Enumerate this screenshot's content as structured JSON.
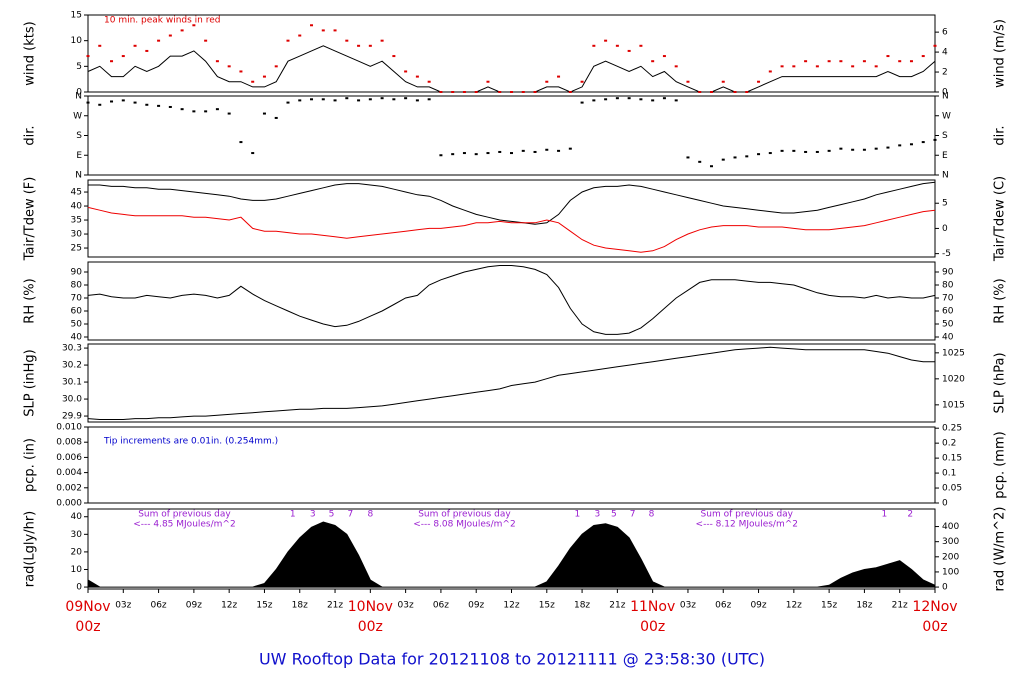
{
  "title": "UW Rooftop Data for 20121108  to  20121111 @ 23:58:30  (UTC)",
  "xlim": [
    0,
    72
  ],
  "x": [
    0,
    1,
    2,
    3,
    4,
    5,
    6,
    7,
    8,
    9,
    10,
    11,
    12,
    13,
    14,
    15,
    16,
    17,
    18,
    19,
    20,
    21,
    22,
    23,
    24,
    25,
    26,
    27,
    28,
    29,
    30,
    31,
    32,
    33,
    34,
    35,
    36,
    37,
    38,
    39,
    40,
    41,
    42,
    43,
    44,
    45,
    46,
    47,
    48,
    49,
    50,
    51,
    52,
    53,
    54,
    55,
    56,
    57,
    58,
    59,
    60,
    61,
    62,
    63,
    64,
    65,
    66,
    67,
    68,
    69,
    70,
    71,
    72
  ],
  "xticks": [
    {
      "value": 0,
      "label": "09Nov",
      "sublabel": "00z"
    },
    {
      "value": 3,
      "label": "03z"
    },
    {
      "value": 6,
      "label": "06z"
    },
    {
      "value": 9,
      "label": "09z"
    },
    {
      "value": 12,
      "label": "12z"
    },
    {
      "value": 15,
      "label": "15z"
    },
    {
      "value": 18,
      "label": "18z"
    },
    {
      "value": 21,
      "label": "21z"
    },
    {
      "value": 24,
      "label": "10Nov",
      "sublabel": "00z"
    },
    {
      "value": 27,
      "label": "03z"
    },
    {
      "value": 30,
      "label": "06z"
    },
    {
      "value": 33,
      "label": "09z"
    },
    {
      "value": 36,
      "label": "12z"
    },
    {
      "value": 39,
      "label": "15z"
    },
    {
      "value": 42,
      "label": "18z"
    },
    {
      "value": 45,
      "label": "21z"
    },
    {
      "value": 48,
      "label": "11Nov",
      "sublabel": "00z"
    },
    {
      "value": 51,
      "label": "03z"
    },
    {
      "value": 54,
      "label": "06z"
    },
    {
      "value": 57,
      "label": "09z"
    },
    {
      "value": 60,
      "label": "12z"
    },
    {
      "value": 63,
      "label": "15z"
    },
    {
      "value": 66,
      "label": "18z"
    },
    {
      "value": 69,
      "label": "21z"
    },
    {
      "value": 72,
      "label": "12Nov",
      "sublabel": "00z"
    }
  ],
  "chart_data": [
    {
      "type": "line",
      "ylabel": "wind (kts)",
      "y2label": "wind (m/s)",
      "annotation": "10 min. peak winds in red",
      "annotation_color": "#dd0000",
      "ylim": [
        0,
        15
      ],
      "yticks": [
        0,
        5,
        10,
        15
      ],
      "y2lim": [
        0,
        7.717
      ],
      "y2ticks": [
        0,
        2,
        4,
        6
      ],
      "series": [
        {
          "name": "wind",
          "style": "line",
          "color": "#000000",
          "values": [
            4,
            5,
            3,
            3,
            5,
            4,
            5,
            7,
            7,
            8,
            6,
            3,
            2,
            2,
            1,
            1,
            2,
            6,
            7,
            8,
            9,
            8,
            7,
            6,
            5,
            6,
            4,
            2,
            1,
            1,
            0,
            0,
            0,
            0,
            1,
            0,
            0,
            0,
            0,
            1,
            1,
            0,
            1,
            5,
            6,
            5,
            4,
            5,
            3,
            4,
            2,
            1,
            0,
            0,
            1,
            0,
            0,
            1,
            2,
            3,
            3,
            3,
            3,
            3,
            3,
            3,
            3,
            3,
            4,
            3,
            3,
            4,
            6
          ]
        },
        {
          "name": "peak",
          "style": "points",
          "color": "#dd0000",
          "values": [
            7,
            9,
            6,
            7,
            9,
            8,
            10,
            11,
            12,
            13,
            10,
            6,
            5,
            4,
            2,
            3,
            5,
            10,
            11,
            13,
            12,
            12,
            10,
            9,
            9,
            10,
            7,
            4,
            3,
            2,
            0,
            0,
            0,
            0,
            2,
            0,
            0,
            0,
            0,
            2,
            3,
            0,
            2,
            9,
            10,
            9,
            8,
            9,
            6,
            7,
            5,
            2,
            0,
            0,
            2,
            0,
            0,
            2,
            4,
            5,
            5,
            6,
            5,
            6,
            6,
            5,
            6,
            5,
            7,
            6,
            6,
            7,
            9
          ]
        }
      ]
    },
    {
      "type": "scatter",
      "ylabel": "dir.",
      "y2label": "dir.",
      "ylim": [
        0,
        360
      ],
      "yticks": [
        {
          "value": 0,
          "label": "N"
        },
        {
          "value": 90,
          "label": "E"
        },
        {
          "value": 180,
          "label": "S"
        },
        {
          "value": 270,
          "label": "W"
        },
        {
          "value": 360,
          "label": "N"
        }
      ],
      "y2lim": [
        0,
        360
      ],
      "y2ticks": [
        {
          "value": 0,
          "label": "N"
        },
        {
          "value": 90,
          "label": "E"
        },
        {
          "value": 180,
          "label": "S"
        },
        {
          "value": 270,
          "label": "W"
        },
        {
          "value": 360,
          "label": "N"
        }
      ],
      "series": [
        {
          "name": "dir",
          "style": "points",
          "color": "#000000",
          "values": [
            330,
            320,
            335,
            340,
            330,
            320,
            315,
            310,
            300,
            290,
            290,
            300,
            280,
            150,
            100,
            280,
            260,
            330,
            340,
            345,
            345,
            340,
            350,
            340,
            345,
            350,
            345,
            350,
            340,
            345,
            90,
            95,
            100,
            95,
            100,
            105,
            100,
            110,
            105,
            115,
            110,
            120,
            330,
            340,
            345,
            350,
            350,
            345,
            340,
            350,
            340,
            80,
            60,
            40,
            70,
            80,
            85,
            95,
            100,
            110,
            110,
            105,
            105,
            110,
            120,
            115,
            115,
            120,
            125,
            135,
            140,
            150,
            160
          ]
        }
      ]
    },
    {
      "type": "line",
      "ylabel": "Tair/Tdew (F)",
      "y2label": "Tair/Tdew (C)",
      "ylim": [
        21.8,
        49.3
      ],
      "yticks": [
        25,
        30,
        35,
        40,
        45
      ],
      "y2lim": [
        -5.67,
        9.61
      ],
      "y2ticks": [
        -5,
        0,
        5
      ],
      "series": [
        {
          "name": "Tair",
          "style": "line",
          "color": "#000000",
          "values": [
            47.5,
            47.5,
            47,
            47,
            46.5,
            46.5,
            46,
            46,
            45.5,
            45,
            44.5,
            44,
            43.5,
            42.5,
            42,
            42,
            42.5,
            43.5,
            44.5,
            45.5,
            46.5,
            47.5,
            48,
            48,
            47.5,
            47,
            46,
            45,
            44,
            43.5,
            42,
            40,
            38.5,
            37,
            36,
            35,
            34.5,
            34,
            33.5,
            34,
            37,
            42,
            45,
            46.5,
            47,
            47,
            47.5,
            47,
            46,
            45,
            44,
            43,
            42,
            41,
            40,
            39.5,
            39,
            38.5,
            38,
            37.5,
            37.5,
            38,
            38.5,
            39.5,
            40.5,
            41.5,
            42.5,
            44,
            45,
            46,
            47,
            48,
            48.5
          ]
        },
        {
          "name": "Tdew",
          "style": "line",
          "color": "#ee0000",
          "values": [
            39.5,
            38.5,
            37.5,
            37,
            36.5,
            36.5,
            36.5,
            36.5,
            36.5,
            36,
            36,
            35.5,
            35,
            36,
            32,
            31,
            31,
            30.5,
            30,
            30,
            29.5,
            29,
            28.5,
            29,
            29.5,
            30,
            30.5,
            31,
            31.5,
            32,
            32,
            32.5,
            33,
            34,
            34,
            34.5,
            34,
            34,
            34,
            35,
            34,
            31,
            28,
            26,
            25,
            24.5,
            24,
            23.5,
            24,
            25.5,
            28,
            30,
            31.5,
            32.5,
            33,
            33,
            33,
            32.5,
            32.5,
            32.5,
            32,
            31.5,
            31.5,
            31.5,
            32,
            32.5,
            33,
            34,
            35,
            36,
            37,
            38,
            38.5
          ]
        }
      ]
    },
    {
      "type": "line",
      "ylabel": "RH (%)",
      "y2label": "RH (%)",
      "ylim": [
        37.7,
        97.7
      ],
      "yticks": [
        40,
        50,
        60,
        70,
        80,
        90
      ],
      "y2lim": [
        37.7,
        97.7
      ],
      "y2ticks": [
        40,
        50,
        60,
        70,
        80,
        90
      ],
      "series": [
        {
          "name": "RH",
          "style": "line",
          "color": "#000000",
          "values": [
            72,
            73,
            71,
            70,
            70,
            72,
            71,
            70,
            72,
            73,
            72,
            70,
            72,
            79,
            73,
            68,
            64,
            60,
            56,
            53,
            50,
            48,
            49,
            52,
            56,
            60,
            65,
            70,
            72,
            80,
            84,
            87,
            90,
            92,
            94,
            95,
            95,
            94,
            92,
            88,
            78,
            62,
            50,
            44,
            42,
            42,
            43,
            47,
            54,
            62,
            70,
            76,
            82,
            84,
            84,
            84,
            83,
            82,
            82,
            81,
            80,
            77,
            74,
            72,
            71,
            71,
            70,
            72,
            70,
            71,
            70,
            70,
            72
          ]
        }
      ]
    },
    {
      "type": "line",
      "ylabel": "SLP (inHg)",
      "y2label": "SLP (hPa)",
      "ylim": [
        29.865,
        30.324
      ],
      "yticks": [
        {
          "value": 29.9,
          "label": "29.9"
        },
        {
          "value": 30,
          "label": "30.0"
        },
        30.1,
        30.2,
        30.3
      ],
      "y2lim": [
        1011.7,
        1026.7
      ],
      "y2ticks": [
        1015,
        1020,
        1025
      ],
      "series": [
        {
          "name": "SLP",
          "style": "line",
          "color": "#000000",
          "values": [
            29.885,
            29.88,
            29.88,
            29.88,
            29.885,
            29.885,
            29.89,
            29.89,
            29.895,
            29.9,
            29.9,
            29.905,
            29.91,
            29.915,
            29.92,
            29.925,
            29.93,
            29.935,
            29.94,
            29.94,
            29.945,
            29.945,
            29.945,
            29.95,
            29.955,
            29.96,
            29.97,
            29.98,
            29.99,
            30.0,
            30.01,
            30.02,
            30.03,
            30.04,
            30.05,
            30.06,
            30.08,
            30.09,
            30.1,
            30.12,
            30.14,
            30.15,
            30.16,
            30.17,
            30.18,
            30.19,
            30.2,
            30.21,
            30.22,
            30.23,
            30.24,
            30.25,
            30.26,
            30.27,
            30.28,
            30.29,
            30.295,
            30.3,
            30.305,
            30.3,
            30.295,
            30.29,
            30.29,
            30.29,
            30.29,
            30.29,
            30.29,
            30.28,
            30.27,
            30.25,
            30.23,
            30.22,
            30.22
          ]
        }
      ]
    },
    {
      "type": "line",
      "ylabel": "pcp. (in)",
      "y2label": "pcp. (mm)",
      "annotation": "Tip increments are 0.01in. (0.254mm.)",
      "annotation_color": "#0000cc",
      "ylim": [
        0,
        0.01
      ],
      "yticks": [
        {
          "value": 0,
          "label": "0.000"
        },
        {
          "value": 0.002,
          "label": "0.002"
        },
        {
          "value": 0.004,
          "label": "0.004"
        },
        {
          "value": 0.006,
          "label": "0.006"
        },
        {
          "value": 0.008,
          "label": "0.008"
        },
        {
          "value": 0.01,
          "label": "0.010"
        }
      ],
      "y2lim": [
        0,
        0.254
      ],
      "y2ticks": [
        0,
        0.05,
        0.1,
        0.15,
        0.2,
        0.25
      ],
      "series": []
    },
    {
      "type": "area",
      "ylabel": "rad(Lgly/hr)",
      "y2label": "rad (W/m^2)",
      "ylim": [
        -1.1,
        44.4
      ],
      "yticks": [
        0,
        10,
        20,
        30,
        40
      ],
      "y2lim": [
        -12.8,
        516
      ],
      "y2ticks": [
        0,
        100,
        200,
        300,
        400
      ],
      "notes": [
        {
          "x": 8.2,
          "lines": [
            "Sum of previous day",
            "<--- 4.85 MJoules/m^2"
          ]
        },
        {
          "x": 32,
          "lines": [
            "Sum of previous day",
            "<--- 8.08 MJoules/m^2"
          ]
        },
        {
          "x": 56,
          "lines": [
            "Sum of previous day",
            "<--- 8.12 MJoules/m^2"
          ]
        }
      ],
      "hour_marks": [
        {
          "x": 17.4,
          "text": "1"
        },
        {
          "x": 19.1,
          "text": "3"
        },
        {
          "x": 20.7,
          "text": "5"
        },
        {
          "x": 22.3,
          "text": "7"
        },
        {
          "x": 24.0,
          "text": "8"
        },
        {
          "x": 41.6,
          "text": "1"
        },
        {
          "x": 43.3,
          "text": "3"
        },
        {
          "x": 44.7,
          "text": "5"
        },
        {
          "x": 46.3,
          "text": "7"
        },
        {
          "x": 47.9,
          "text": "8"
        },
        {
          "x": 67.7,
          "text": "1"
        },
        {
          "x": 69.9,
          "text": "2"
        }
      ],
      "series": [
        {
          "name": "rad",
          "style": "area",
          "color": "#000000",
          "values": [
            4,
            0,
            0,
            0,
            0,
            0,
            0,
            0,
            0,
            0,
            0,
            0,
            0,
            0,
            0,
            2,
            10,
            20,
            28,
            34,
            37,
            35,
            30,
            18,
            4,
            0,
            0,
            0,
            0,
            0,
            0,
            0,
            0,
            0,
            0,
            0,
            0,
            0,
            0,
            3,
            12,
            22,
            30,
            35,
            36,
            34,
            28,
            16,
            3,
            0,
            0,
            0,
            0,
            0,
            0,
            0,
            0,
            0,
            0,
            0,
            0,
            0,
            0,
            1,
            5,
            8,
            10,
            11,
            13,
            15,
            10,
            4,
            1
          ]
        }
      ]
    }
  ]
}
